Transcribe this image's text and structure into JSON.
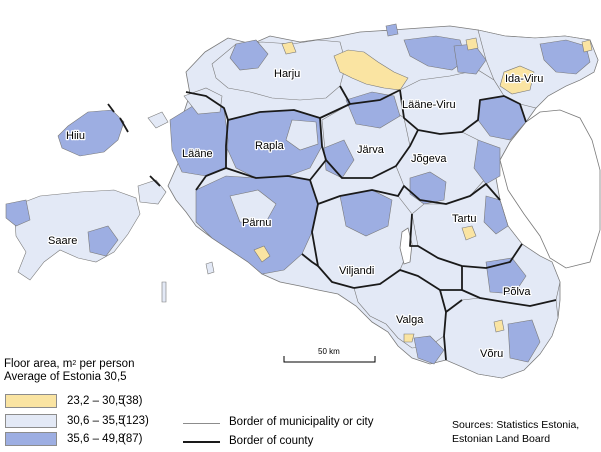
{
  "map": {
    "counties": [
      {
        "name": "Harju"
      },
      {
        "name": "Ida-Viru"
      },
      {
        "name": "Lääne-Viru"
      },
      {
        "name": "Hiiu"
      },
      {
        "name": "Lääne"
      },
      {
        "name": "Rapla"
      },
      {
        "name": "Järva"
      },
      {
        "name": "Jõgeva"
      },
      {
        "name": "Saare"
      },
      {
        "name": "Pärnu"
      },
      {
        "name": "Tartu"
      },
      {
        "name": "Viljandi"
      },
      {
        "name": "Põlva"
      },
      {
        "name": "Valga"
      },
      {
        "name": "Võru"
      }
    ],
    "scale_bar_label": "50 km"
  },
  "legend": {
    "title_line1_prefix": "Floor area, m",
    "title_line1_sup": "2",
    "title_line1_suffix": " per person",
    "title_line2": "Average of Estonia 30,5",
    "classes": [
      {
        "range": "23,2 – 30,5",
        "count": "(38)",
        "color": "#fae4a2"
      },
      {
        "range": "30,6 – 35,5",
        "count": "(123)",
        "color": "#e3e9f6"
      },
      {
        "range": "35,6 – 49,8",
        "count": "(87)",
        "color": "#9daee2"
      }
    ],
    "lines": [
      {
        "label": "Border of municipality or city"
      },
      {
        "label": "Border of county"
      }
    ]
  },
  "sources": {
    "line1": "Sources: Statistics Estonia,",
    "line2": "Estonian Land Board"
  },
  "colors": {
    "low": "#fae4a2",
    "mid": "#e3e9f6",
    "high": "#9daee2",
    "county_border": "#1a1a1a",
    "municipality_border": "#7a7a7a",
    "sea": "#ffffff"
  }
}
